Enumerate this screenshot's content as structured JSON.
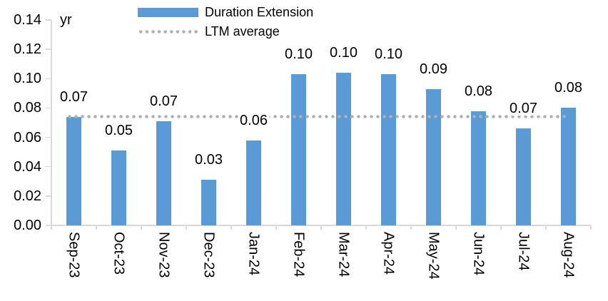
{
  "chart_data": {
    "type": "bar",
    "unit_label": "yr",
    "categories": [
      "Sep-23",
      "Oct-23",
      "Nov-23",
      "Dec-23",
      "Jan-24",
      "Feb-24",
      "Mar-24",
      "Apr-24",
      "May-24",
      "Jun-24",
      "Jul-24",
      "Aug-24"
    ],
    "series": [
      {
        "name": "Duration Extension",
        "color": "#5B9BD5",
        "values": [
          0.07,
          0.05,
          0.07,
          0.03,
          0.06,
          0.1,
          0.1,
          0.1,
          0.09,
          0.08,
          0.07,
          0.08
        ],
        "values_precise": [
          0.074,
          0.051,
          0.071,
          0.031,
          0.058,
          0.103,
          0.104,
          0.103,
          0.093,
          0.078,
          0.066,
          0.08
        ],
        "data_labels": [
          "0.07",
          "0.05",
          "0.07",
          "0.03",
          "0.06",
          "0.10",
          "0.10",
          "0.10",
          "0.09",
          "0.08",
          "0.07",
          "0.08"
        ]
      }
    ],
    "ltm_average": {
      "name": "LTM average",
      "value": 0.074,
      "color": "#B0B0B0",
      "style": "dotted"
    },
    "y_axis": {
      "min": 0.0,
      "max": 0.14,
      "step": 0.02,
      "tick_labels": [
        "0.00",
        "0.02",
        "0.04",
        "0.06",
        "0.08",
        "0.10",
        "0.12",
        "0.14"
      ]
    },
    "x_axis": {
      "label_rotation": "vertical"
    },
    "legend": {
      "position": "top",
      "items": [
        {
          "label": "Duration Extension",
          "swatch": "bar",
          "color": "#5B9BD5"
        },
        {
          "label": "LTM average",
          "swatch": "dotted-line",
          "color": "#B0B0B0"
        }
      ]
    },
    "grid": "off",
    "axis_color": "#D9D9D9",
    "text_color": "#000000",
    "background": "#FFFFFF"
  }
}
